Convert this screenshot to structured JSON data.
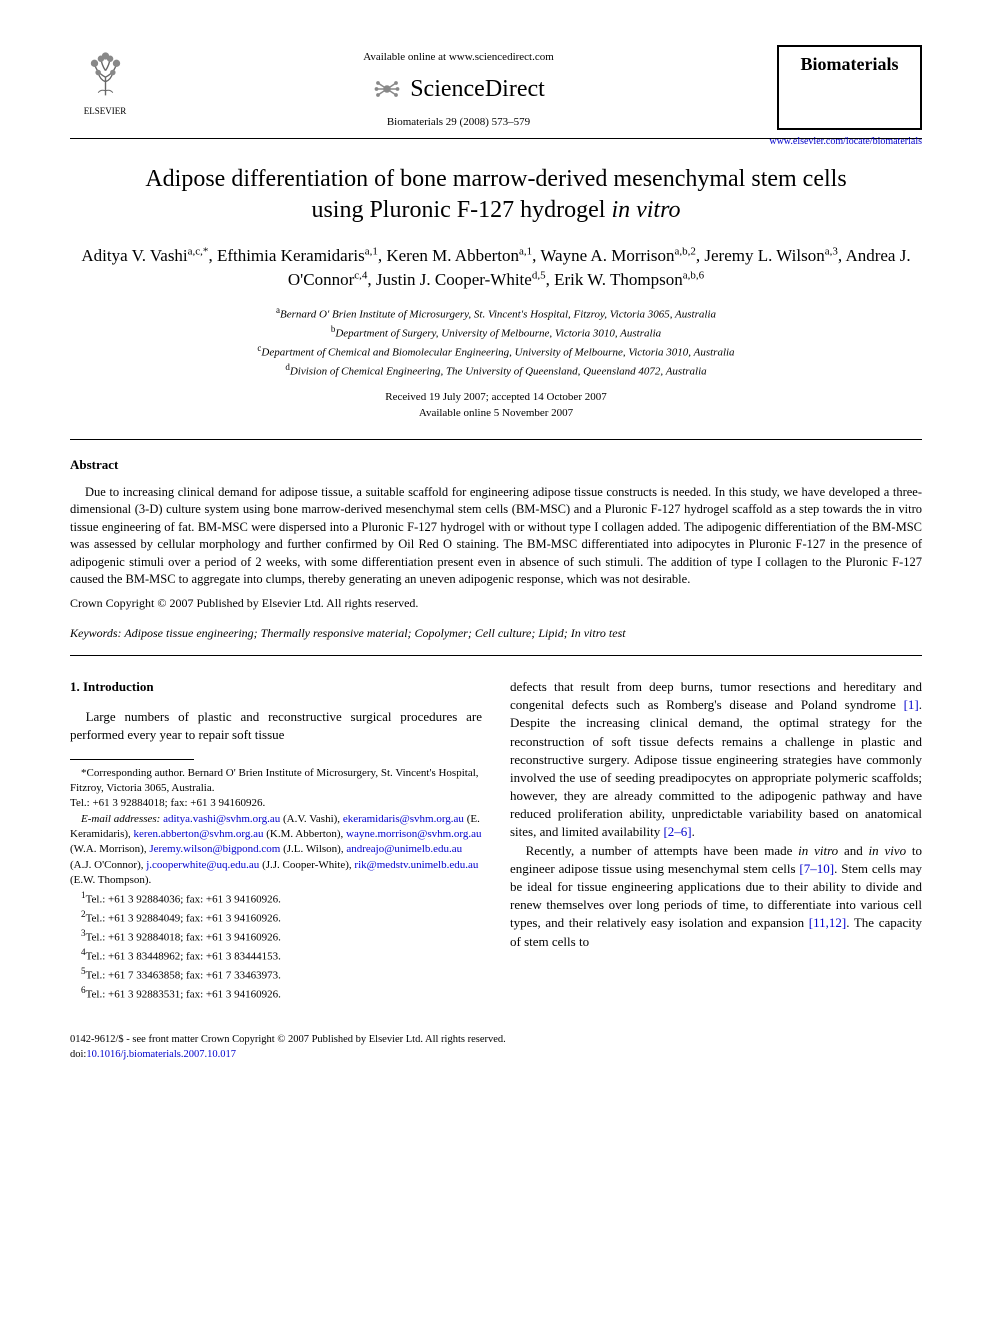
{
  "header": {
    "elsevier_label": "ELSEVIER",
    "available_online": "Available online at www.sciencedirect.com",
    "sciencedirect": "ScienceDirect",
    "citation": "Biomaterials 29 (2008) 573–579",
    "journal_name": "Biomaterials",
    "journal_url": "www.elsevier.com/locate/biomaterials"
  },
  "title_line1": "Adipose differentiation of bone marrow-derived mesenchymal stem cells",
  "title_line2_pre": "using Pluronic F-127 hydrogel ",
  "title_line2_ital": "in vitro",
  "authors_html": "Aditya V. Vashi<sup>a,c,*</sup>, Efthimia Keramidaris<sup>a,1</sup>, Keren M. Abberton<sup>a,1</sup>, Wayne A. Morrison<sup>a,b,2</sup>, Jeremy L. Wilson<sup>a,3</sup>, Andrea J. O'Connor<sup>c,4</sup>, Justin J. Cooper-White<sup>d,5</sup>, Erik W. Thompson<sup>a,b,6</sup>",
  "affiliations": [
    {
      "sup": "a",
      "text": "Bernard O' Brien Institute of Microsurgery, St. Vincent's Hospital, Fitzroy, Victoria 3065, Australia"
    },
    {
      "sup": "b",
      "text": "Department of Surgery, University of Melbourne, Victoria 3010, Australia"
    },
    {
      "sup": "c",
      "text": "Department of Chemical and Biomolecular Engineering, University of Melbourne, Victoria 3010, Australia"
    },
    {
      "sup": "d",
      "text": "Division of Chemical Engineering, The University of Queensland, Queensland 4072, Australia"
    }
  ],
  "dates": {
    "received": "Received 19 July 2007; accepted 14 October 2007",
    "available": "Available online 5 November 2007"
  },
  "abstract_heading": "Abstract",
  "abstract_text": "Due to increasing clinical demand for adipose tissue, a suitable scaffold for engineering adipose tissue constructs is needed. In this study, we have developed a three-dimensional (3-D) culture system using bone marrow-derived mesenchymal stem cells (BM-MSC) and a Pluronic F-127 hydrogel scaffold as a step towards the in vitro tissue engineering of fat. BM-MSC were dispersed into a Pluronic F-127 hydrogel with or without type I collagen added. The adipogenic differentiation of the BM-MSC was assessed by cellular morphology and further confirmed by Oil Red O staining. The BM-MSC differentiated into adipocytes in Pluronic F-127 in the presence of adipogenic stimuli over a period of 2 weeks, with some differentiation present even in absence of such stimuli. The addition of type I collagen to the Pluronic F-127 caused the BM-MSC to aggregate into clumps, thereby generating an uneven adipogenic response, which was not desirable.",
  "copyright": "Crown Copyright © 2007 Published by Elsevier Ltd. All rights reserved.",
  "keywords_label": "Keywords:",
  "keywords_text": " Adipose tissue engineering; Thermally responsive material; Copolymer; Cell culture; Lipid; In vitro test",
  "intro_heading": "1. Introduction",
  "intro_p1": "Large numbers of plastic and reconstructive surgical procedures are performed every year to repair soft tissue",
  "intro_p2_a": "defects that result from deep burns, tumor resections and hereditary and congenital defects such as Romberg's disease and Poland syndrome ",
  "intro_p2_ref1": "[1]",
  "intro_p2_b": ". Despite the increasing clinical demand, the optimal strategy for the reconstruction of soft tissue defects remains a challenge in plastic and reconstructive surgery. Adipose tissue engineering strategies have commonly involved the use of seeding preadipocytes on appropriate polymeric scaffolds; however, they are already committed to the adipogenic pathway and have reduced proliferation ability, unpredictable variability based on anatomical sites, and limited availability ",
  "intro_p2_ref2": "[2–6]",
  "intro_p2_c": ".",
  "intro_p3_a": "Recently, a number of attempts have been made ",
  "intro_p3_ital1": "in vitro",
  "intro_p3_b": " and ",
  "intro_p3_ital2": "in vivo",
  "intro_p3_c": " to engineer adipose tissue using mesenchymal stem cells ",
  "intro_p3_ref1": "[7–10]",
  "intro_p3_d": ". Stem cells may be ideal for tissue engineering applications due to their ability to divide and renew themselves over long periods of time, to differentiate into various cell types, and their relatively easy isolation and expansion ",
  "intro_p3_ref2": "[11,12]",
  "intro_p3_e": ". The capacity of stem cells to",
  "footnotes": {
    "corr": "*Corresponding author. Bernard O' Brien Institute of Microsurgery, St. Vincent's Hospital, Fitzroy, Victoria 3065, Australia.",
    "tel": "Tel.: +61 3 92884018; fax: +61 3 94160926.",
    "email_label": "E-mail addresses:",
    "emails": " aditya.vashi@svhm.org.au (A.V. Vashi), ekeramidaris@svhm.org.au (E. Keramidaris), keren.abberton@svhm.org.au (K.M. Abberton), wayne.morrison@svhm.org.au (W.A. Morrison), Jeremy.wilson@bigpond.com (J.L. Wilson), andreajo@unimelb.edu.au (A.J. O'Connor), j.cooperwhite@uq.edu.au (J.J. Cooper-White), rik@medstv.unimelb.edu.au (E.W. Thompson).",
    "tels": [
      {
        "sup": "1",
        "text": "Tel.: +61 3 92884036; fax: +61 3 94160926."
      },
      {
        "sup": "2",
        "text": "Tel.: +61 3 92884049; fax: +61 3 94160926."
      },
      {
        "sup": "3",
        "text": "Tel.: +61 3 92884018; fax: +61 3 94160926."
      },
      {
        "sup": "4",
        "text": "Tel.: +61 3 83448962; fax: +61 3 83444153."
      },
      {
        "sup": "5",
        "text": "Tel.: +61 7 33463858; fax: +61 7 33463973."
      },
      {
        "sup": "6",
        "text": "Tel.: +61 3 92883531; fax: +61 3 94160926."
      }
    ]
  },
  "footer": {
    "line1": "0142-9612/$ - see front matter Crown Copyright © 2007 Published by Elsevier Ltd. All rights reserved.",
    "doi_label": "doi:",
    "doi": "10.1016/j.biomaterials.2007.10.017"
  },
  "colors": {
    "link": "#0000cc",
    "text": "#000000",
    "bg": "#ffffff"
  }
}
